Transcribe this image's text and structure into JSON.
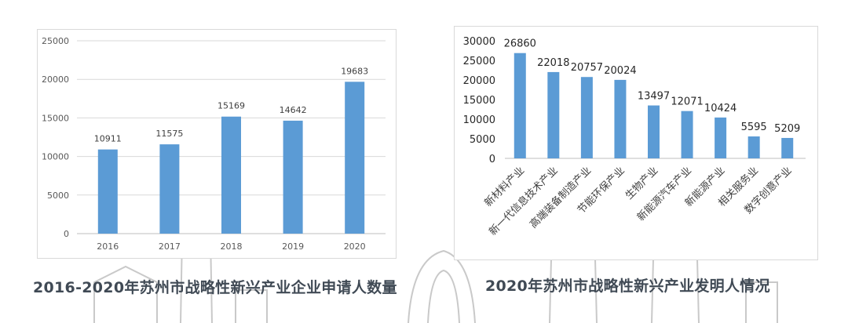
{
  "background": {
    "skyline_color": "#c9c9c9"
  },
  "chart_data": [
    {
      "type": "bar",
      "title": "2016-2020年苏州市战略性新兴产业企业申请人数量",
      "categories": [
        "2016",
        "2017",
        "2018",
        "2019",
        "2020"
      ],
      "values": [
        10911,
        11575,
        15169,
        14642,
        19683
      ],
      "data_labels": [
        "10911",
        "11575",
        "15169",
        "14642",
        "19683"
      ],
      "yticks": [
        "0",
        "5000",
        "10000",
        "15000",
        "20000",
        "25000"
      ],
      "ylim": [
        0,
        25000
      ],
      "grid": true,
      "legend": "none",
      "bar_color": "#5b9bd5"
    },
    {
      "type": "bar",
      "title": "2020年苏州市战略性新兴产业发明人情况",
      "categories": [
        "新材料产业",
        "新一代信息技术产业",
        "高端装备制造产业",
        "节能环保产业",
        "生物产业",
        "新能源汽车产业",
        "新能源产业",
        "相关服务业",
        "数字创意产业"
      ],
      "values": [
        26860,
        22018,
        20757,
        20024,
        13497,
        12071,
        10424,
        5595,
        5209
      ],
      "data_labels": [
        "26860",
        "22018",
        "20757",
        "20024",
        "13497",
        "12071",
        "10424",
        "5595",
        "5209"
      ],
      "yticks": [
        "0",
        "5000",
        "10000",
        "15000",
        "20000",
        "25000",
        "30000"
      ],
      "ylim": [
        0,
        30000
      ],
      "grid": false,
      "legend": "none",
      "bar_color": "#5b9bd5"
    }
  ]
}
